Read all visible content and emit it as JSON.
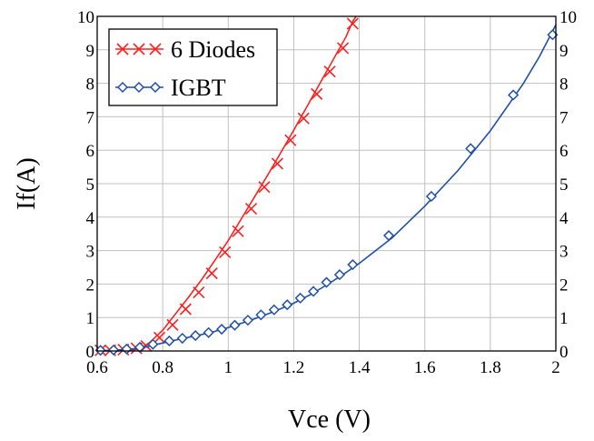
{
  "chart_data": {
    "type": "line",
    "title": "",
    "xlabel": "Vce (V)",
    "ylabel": "If(A)",
    "xlim": [
      0.6,
      2.0
    ],
    "ylim": [
      0,
      10
    ],
    "x_ticks": [
      0.6,
      0.8,
      1.0,
      1.2,
      1.4,
      1.6,
      1.8,
      2.0
    ],
    "x_tick_labels": [
      "0.6",
      "0.8",
      "1",
      "1.2",
      "1.4",
      "1.6",
      "1.8",
      "2"
    ],
    "y_ticks": [
      0,
      1,
      2,
      3,
      4,
      5,
      6,
      7,
      8,
      9,
      10
    ],
    "y_tick_labels": [
      "0",
      "1",
      "2",
      "3",
      "4",
      "5",
      "6",
      "7",
      "8",
      "9",
      "10"
    ],
    "grid": true,
    "legend_position": "top-left",
    "series": [
      {
        "name": "6 Diodes",
        "color": "#ff2020",
        "marker": "x",
        "curve_x": [
          0.6,
          0.62,
          0.66,
          0.7,
          0.73,
          0.76,
          0.8,
          0.84,
          0.88,
          0.92,
          0.96,
          1.0,
          1.04,
          1.08,
          1.12,
          1.16,
          1.2,
          1.24,
          1.28,
          1.32,
          1.36,
          1.38,
          1.39
        ],
        "curve_y": [
          0.0,
          0.0,
          0.0,
          0.02,
          0.06,
          0.25,
          0.62,
          1.12,
          1.62,
          2.15,
          2.72,
          3.3,
          3.95,
          4.6,
          5.25,
          5.92,
          6.6,
          7.3,
          8.0,
          8.7,
          9.4,
          9.85,
          10.0
        ],
        "marker_x": [
          0.61,
          0.64,
          0.68,
          0.72,
          0.75,
          0.79,
          0.83,
          0.87,
          0.91,
          0.95,
          0.99,
          1.03,
          1.07,
          1.11,
          1.15,
          1.19,
          1.23,
          1.27,
          1.31,
          1.35,
          1.38
        ],
        "marker_y": [
          0.02,
          0.02,
          0.04,
          0.08,
          0.15,
          0.4,
          0.78,
          1.25,
          1.75,
          2.32,
          2.95,
          3.58,
          4.25,
          4.9,
          5.6,
          6.3,
          6.95,
          7.68,
          8.35,
          9.05,
          9.78
        ]
      },
      {
        "name": "IGBT",
        "color": "#1f4fa8",
        "marker": "diamond",
        "curve_x": [
          0.6,
          0.7,
          0.75,
          0.8,
          0.85,
          0.9,
          0.95,
          1.0,
          1.05,
          1.1,
          1.15,
          1.2,
          1.25,
          1.3,
          1.35,
          1.4,
          1.5,
          1.6,
          1.7,
          1.8,
          1.9,
          1.95,
          2.0
        ],
        "curve_y": [
          0.0,
          0.05,
          0.12,
          0.24,
          0.35,
          0.45,
          0.56,
          0.7,
          0.86,
          1.03,
          1.22,
          1.43,
          1.68,
          1.97,
          2.28,
          2.62,
          3.38,
          4.33,
          5.38,
          6.58,
          7.98,
          8.8,
          9.75
        ],
        "marker_x": [
          0.61,
          0.65,
          0.69,
          0.73,
          0.77,
          0.82,
          0.86,
          0.9,
          0.94,
          0.98,
          1.02,
          1.06,
          1.1,
          1.14,
          1.18,
          1.22,
          1.26,
          1.3,
          1.34,
          1.38,
          1.49,
          1.62,
          1.74,
          1.87,
          1.99
        ],
        "marker_y": [
          0.02,
          0.03,
          0.06,
          0.11,
          0.2,
          0.3,
          0.38,
          0.46,
          0.55,
          0.65,
          0.77,
          0.92,
          1.08,
          1.23,
          1.38,
          1.58,
          1.78,
          2.05,
          2.28,
          2.58,
          3.45,
          4.62,
          6.05,
          7.65,
          9.45
        ]
      }
    ]
  }
}
